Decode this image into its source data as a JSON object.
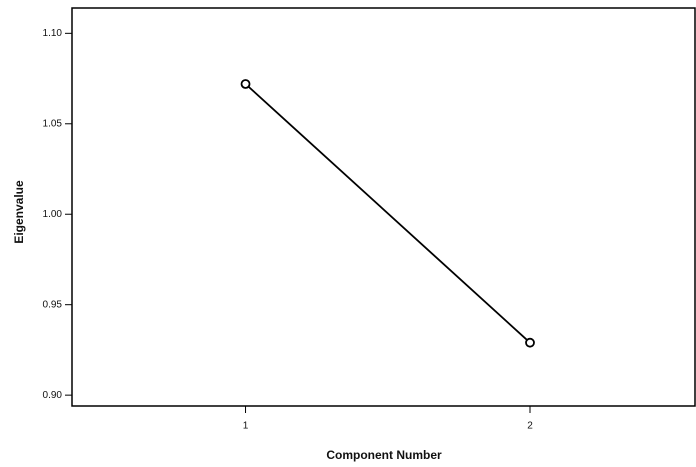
{
  "chart_data": {
    "type": "line",
    "x_label": "Component Number",
    "y_label": "Eigenvalue",
    "x": [
      1,
      2
    ],
    "series": [
      {
        "color": "#000000",
        "values": [
          1.072,
          0.929
        ]
      }
    ],
    "xlim": [
      0.39,
      2.58
    ],
    "xticks": [
      1,
      2
    ],
    "ylim": [
      0.894,
      1.114
    ],
    "yticks": [
      {
        "value": 0.9,
        "label": "0.90"
      },
      0.95,
      {
        "value": 1.0,
        "label": "1.00"
      },
      1.05,
      {
        "value": 1.1,
        "label": "1.10"
      }
    ],
    "grid": false,
    "markers": "open-circle"
  }
}
